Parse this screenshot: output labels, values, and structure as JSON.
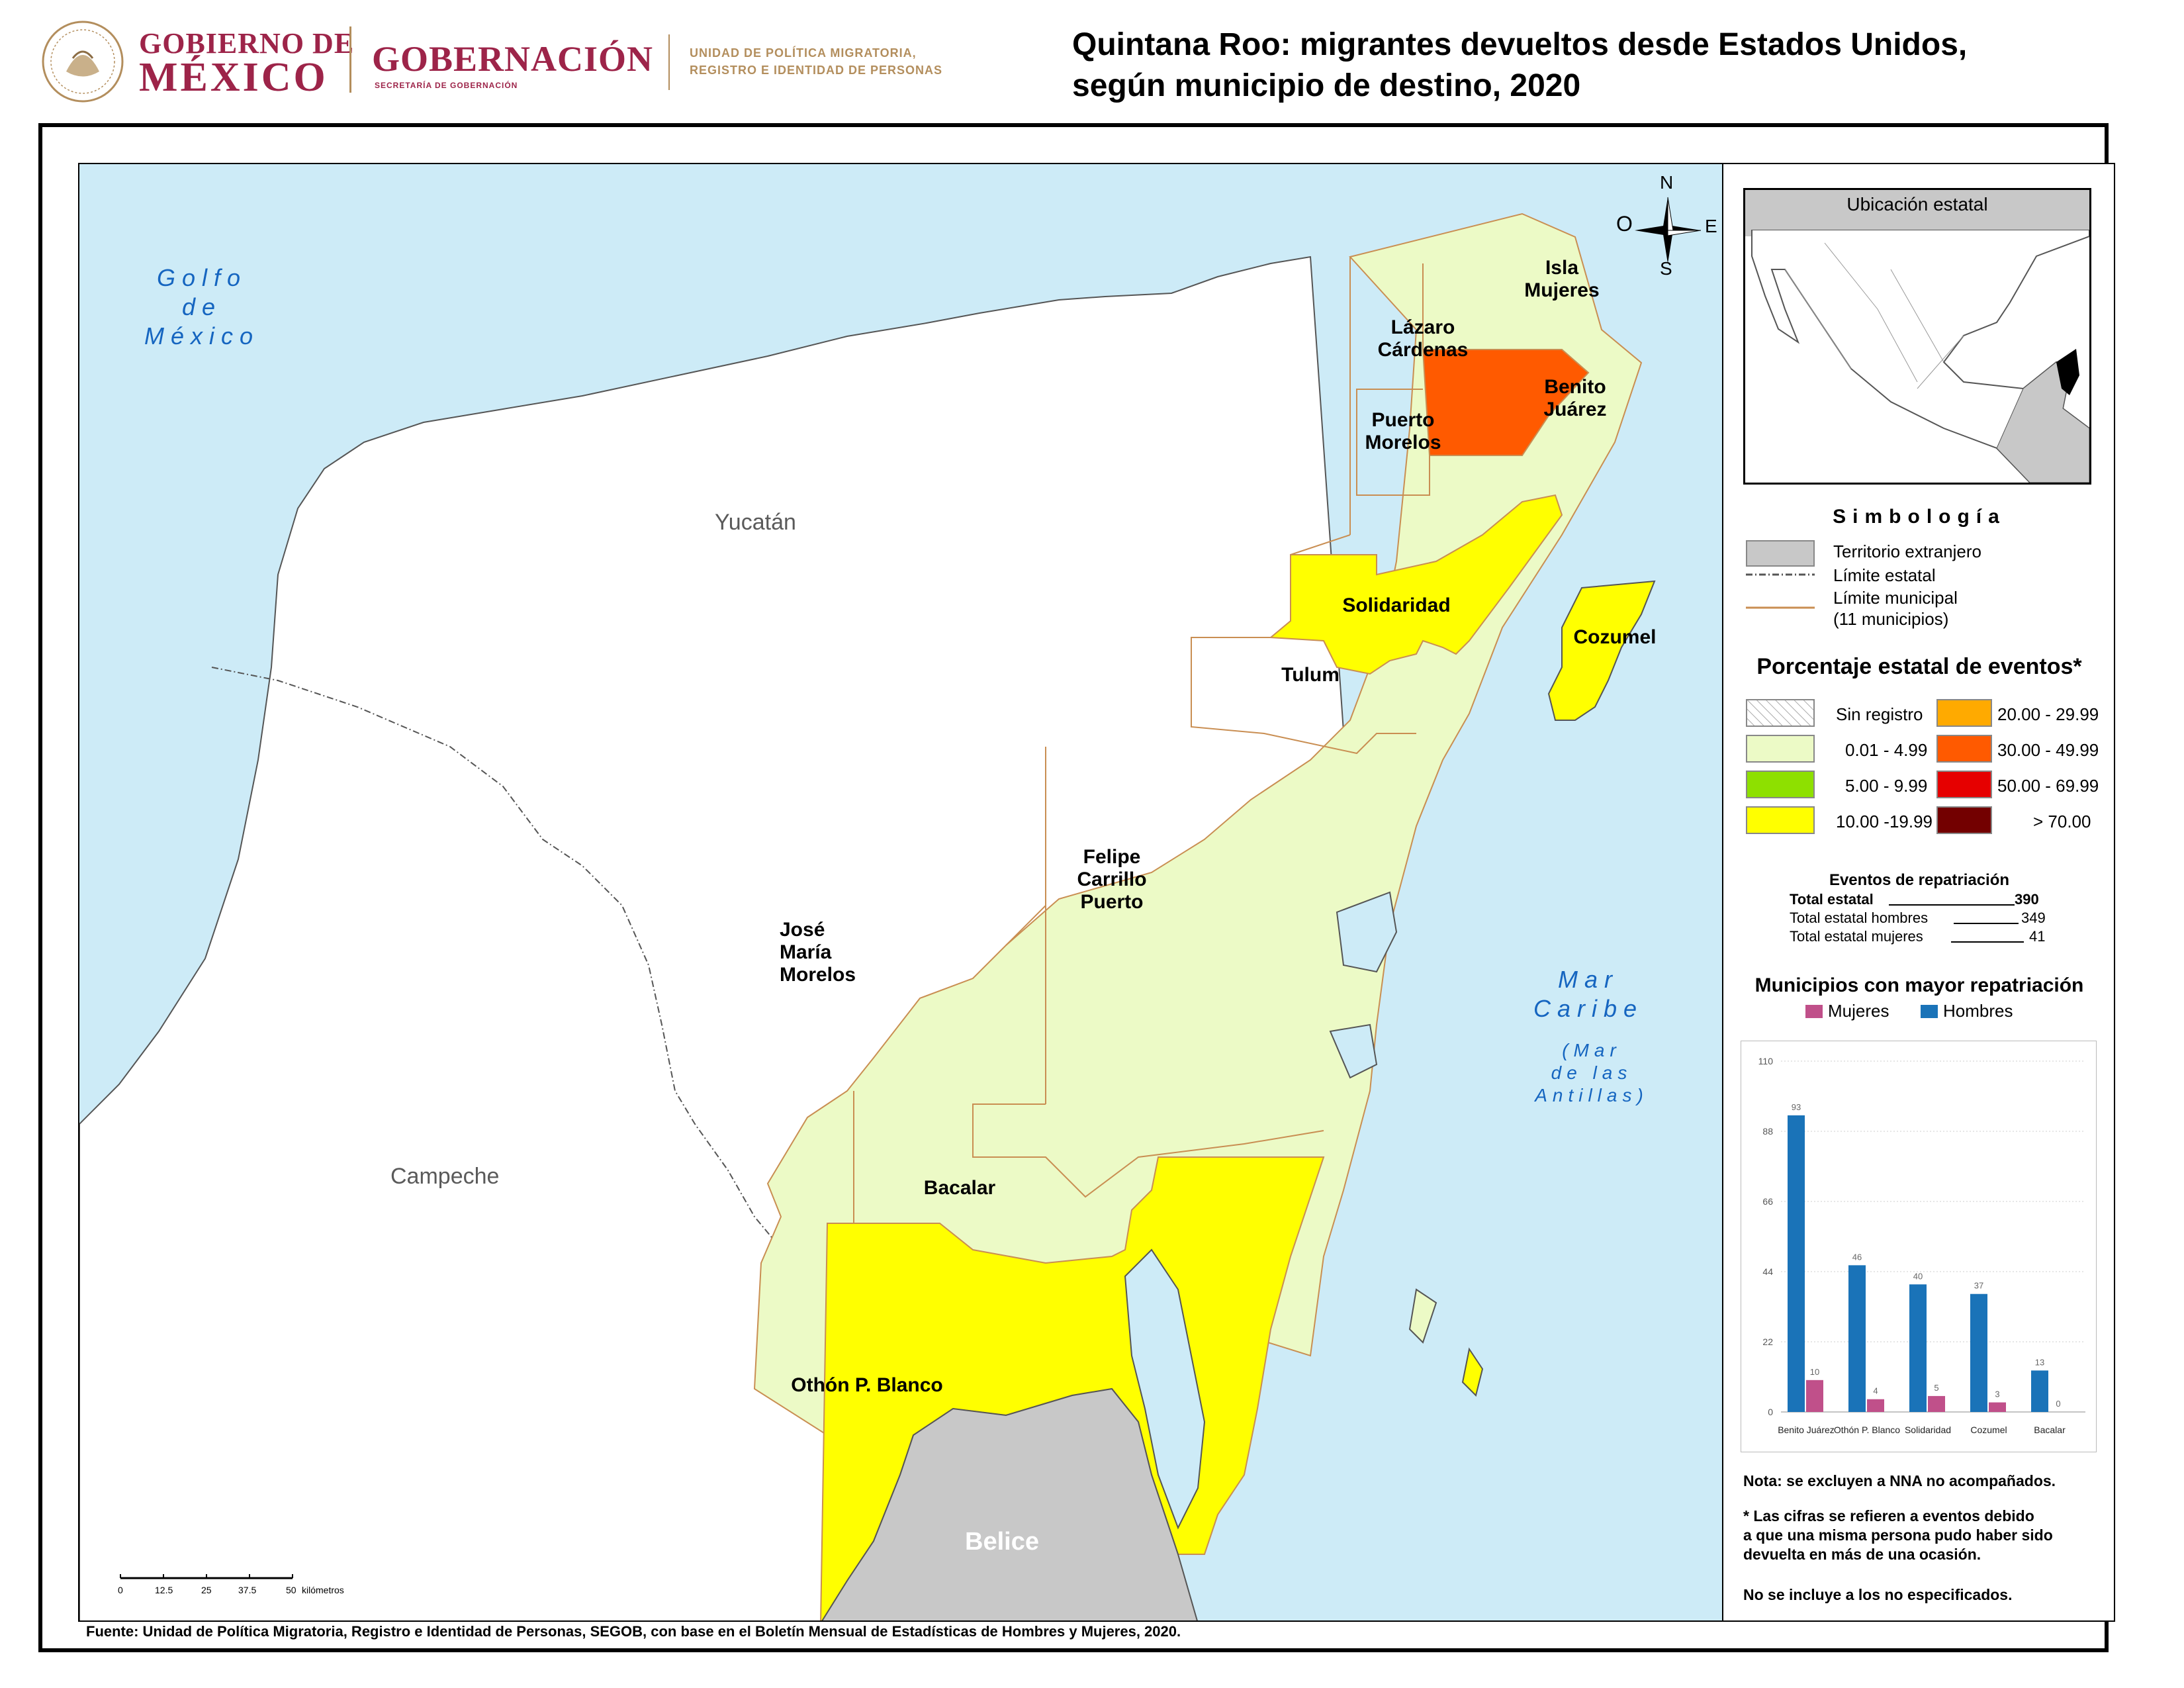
{
  "header": {
    "gob1": "GOBIERNO DE",
    "gob2": "MÉXICO",
    "gobernacion": "GOBERNACIÓN",
    "secretaria": "SECRETARÍA DE GOBERNACIÓN",
    "upm1": "UNIDAD DE POLÍTICA MIGRATORIA,",
    "upm2": "REGISTRO E IDENTIDAD DE PERSONAS",
    "title1": "Quintana Roo: migrantes devueltos desde Estados Unidos,",
    "title2": "según municipio de destino, 2020"
  },
  "map": {
    "regions": {
      "yucatan": "Yucatán",
      "campeche": "Campeche",
      "belice": "Belice"
    },
    "seas": {
      "golfo": [
        "Golfo",
        "de",
        "México"
      ],
      "caribe": [
        "Mar",
        "Caribe"
      ],
      "antillas": [
        "(Mar",
        "de las",
        "Antillas)"
      ]
    },
    "municipalities": {
      "isla_mujeres": [
        "Isla",
        "Mujeres"
      ],
      "lazaro": [
        "Lázaro",
        "Cárdenas"
      ],
      "benito": [
        "Benito",
        "Juárez"
      ],
      "puerto_morelos": [
        "Puerto",
        "Morelos"
      ],
      "solidaridad": "Solidaridad",
      "cozumel": "Cozumel",
      "tulum": "Tulum",
      "felipe": [
        "Felipe",
        "Carrillo",
        "Puerto"
      ],
      "jose_maria": [
        "José",
        "María",
        "Morelos"
      ],
      "bacalar": "Bacalar",
      "othon": "Othón P. Blanco"
    },
    "compass": {
      "n": "N",
      "s": "S",
      "e": "E",
      "o": "O"
    },
    "scale": {
      "ticks": [
        "0",
        "12.5",
        "25",
        "37.5",
        "50"
      ],
      "unit": "kilómetros"
    },
    "colors": {
      "sea": "#cdebf7",
      "light_green": "#ecfac6",
      "yellow": "#ffff00",
      "orange_red": "#ff5a00",
      "foreign": "#c8c8c8",
      "muni_border": "#c98e52"
    }
  },
  "sidebar": {
    "location_title": "Ubicación estatal",
    "symb_title": "Simbología",
    "symb_items": [
      "Territorio extranjero",
      "Límite estatal",
      "Límite municipal",
      "(11 municipios)"
    ],
    "pct_title": "Porcentaje estatal de eventos*",
    "pct_left": [
      {
        "label": "Sin registro",
        "color": "hatch"
      },
      {
        "label": "0.01  - 4.99",
        "color": "#ecfac6"
      },
      {
        "label": "5.00  - 9.99",
        "color": "#8ee000"
      },
      {
        "label": "10.00 -19.99",
        "color": "#ffff00"
      }
    ],
    "pct_right": [
      {
        "label": "20.00 - 29.99",
        "color": "#ffaa00"
      },
      {
        "label": "30.00 - 49.99",
        "color": "#ff5a00"
      },
      {
        "label": "50.00 - 69.99",
        "color": "#e60000"
      },
      {
        "label": "> 70.00",
        "color": "#730000"
      }
    ],
    "events_title": "Eventos de repatriación",
    "total_label": "Total estatal",
    "total_value": "390",
    "men_label": "Total estatal hombres",
    "men_value": "349",
    "women_label": "Total estatal mujeres",
    "women_value": "41",
    "chart_title": "Municipios con mayor repatriación",
    "note1": "Nota: se excluyen a NNA no acompañados.",
    "note2": [
      "* Las cifras se refieren a eventos debido",
      "a que una misma persona pudo haber sido",
      "devuelta en más de una ocasión."
    ],
    "note3": "No se incluye a los no especificados."
  },
  "chart_data": {
    "type": "bar",
    "title": "Municipios con mayor repatriación",
    "categories": [
      "Benito Juárez",
      "Othón P. Blanco",
      "Solidaridad",
      "Cozumel",
      "Bacalar"
    ],
    "series": [
      {
        "name": "Hombres",
        "color": "#1a73b8",
        "values": [
          93,
          46,
          40,
          37,
          13
        ]
      },
      {
        "name": "Mujeres",
        "color": "#c0508a",
        "values": [
          10,
          4,
          5,
          3,
          0
        ]
      }
    ],
    "yticks": [
      0,
      22,
      44,
      66,
      88,
      110
    ],
    "ylim": [
      0,
      110
    ],
    "legend": "top"
  },
  "source": "Fuente: Unidad de Política Migratoria, Registro e Identidad de Personas, SEGOB, con base en el Boletín Mensual de Estadísticas de Hombres y Mujeres, 2020."
}
